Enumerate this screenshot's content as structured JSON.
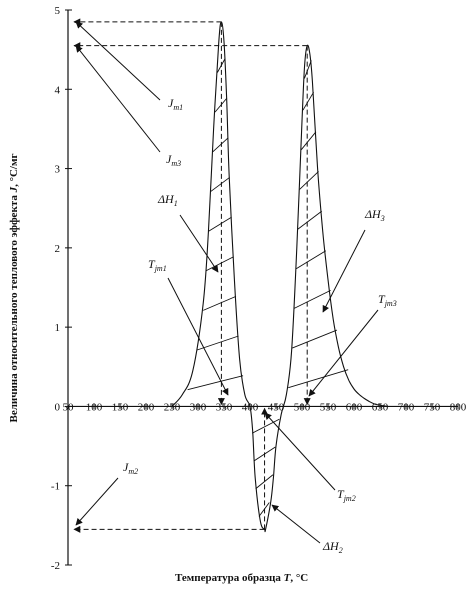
{
  "chart_data": {
    "type": "line",
    "title": "",
    "xlabel": {
      "prefix": "Температура образца ",
      "symbol": "T",
      "unit": ", °С"
    },
    "ylabel": {
      "prefix": "Величина относительного теплового эффекта ",
      "symbol": "J",
      "unit": ", °С/мг"
    },
    "xlim": [
      50,
      800
    ],
    "ylim": [
      -2,
      5
    ],
    "x_ticks": [
      50,
      100,
      150,
      200,
      250,
      300,
      350,
      400,
      450,
      500,
      550,
      600,
      650,
      700,
      750,
      800
    ],
    "y_ticks": [
      -2,
      -1,
      0,
      1,
      2,
      3,
      4,
      5
    ],
    "grid": false,
    "series": [
      {
        "x": [
          250,
          270,
          290,
          310,
          320,
          330,
          340,
          345,
          350,
          355,
          360,
          370,
          380,
          390,
          400,
          405,
          410,
          420,
          428,
          430,
          440,
          445,
          450,
          460,
          470,
          480,
          490,
          500,
          505,
          510,
          515,
          520,
          530,
          540,
          550,
          560,
          570,
          580,
          590,
          600,
          610,
          620,
          630,
          640,
          650,
          660,
          665
        ],
        "y": [
          0,
          0.15,
          0.45,
          1.3,
          2.2,
          3.5,
          4.6,
          4.85,
          4.6,
          3.9,
          2.9,
          1.6,
          0.6,
          0.15,
          0,
          -0.3,
          -0.9,
          -1.45,
          -1.55,
          -1.55,
          -1.2,
          -0.9,
          -0.5,
          -0.1,
          0.15,
          0.7,
          2.0,
          3.6,
          4.3,
          4.55,
          4.45,
          4.1,
          3.0,
          2.2,
          1.6,
          1.1,
          0.75,
          0.5,
          0.33,
          0.22,
          0.15,
          0.1,
          0.06,
          0.03,
          0.015,
          0.005,
          0
        ]
      }
    ],
    "peaks": [
      {
        "x": 345,
        "y": 4.85
      },
      {
        "x": 428,
        "y": -1.55
      },
      {
        "x": 510,
        "y": 4.55
      }
    ],
    "annotations": [
      {
        "main": "J",
        "sub": "m1"
      },
      {
        "main": "J",
        "sub": "m3"
      },
      {
        "main": "ΔH",
        "sub": "1"
      },
      {
        "main": "T",
        "sub": "jm1"
      },
      {
        "main": "ΔH",
        "sub": "3"
      },
      {
        "main": "T",
        "sub": "jm3"
      },
      {
        "main": "J",
        "sub": "m2"
      },
      {
        "main": "T",
        "sub": "jm2"
      },
      {
        "main": "ΔH",
        "sub": "2"
      }
    ]
  }
}
